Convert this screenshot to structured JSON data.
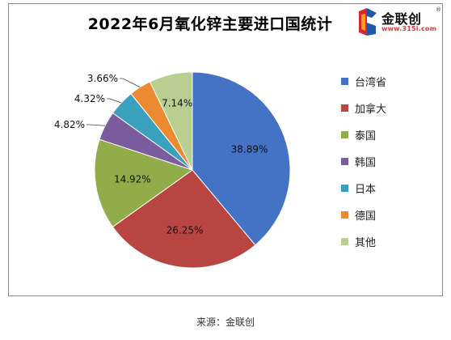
{
  "chart_data": {
    "type": "pie",
    "title": "2022年6月氧化锌主要进口国统计",
    "categories": [
      "台湾省",
      "加拿大",
      "泰国",
      "韩国",
      "日本",
      "德国",
      "其他"
    ],
    "values": [
      38.89,
      26.25,
      14.92,
      4.82,
      4.32,
      3.66,
      7.14
    ],
    "value_labels": [
      "38.89%",
      "26.25%",
      "14.92%",
      "4.82%",
      "4.32%",
      "3.66%",
      "7.14%"
    ],
    "colors": [
      "#4472c4",
      "#b94543",
      "#90ad4a",
      "#7a5c9e",
      "#3aa0bd",
      "#ec8a31",
      "#b9cf91"
    ],
    "legend_position": "right"
  },
  "logo": {
    "text": "金联创",
    "url": "www.315i.com",
    "registered": "®"
  },
  "footer": {
    "source": "来源：金联创"
  }
}
